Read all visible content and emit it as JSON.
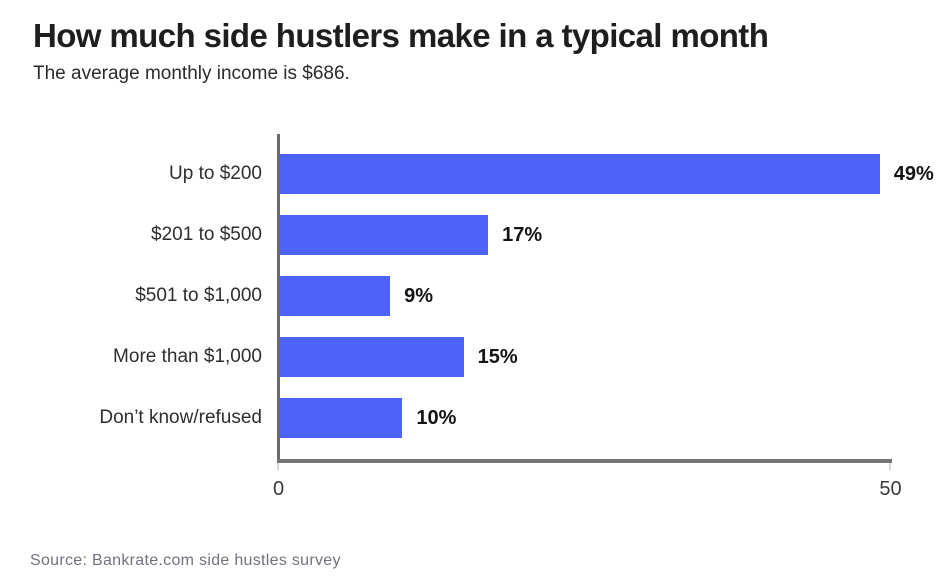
{
  "header": {
    "title": "How much side hustlers make in a typical month",
    "subtitle": "The average monthly income is $686."
  },
  "chart_data": {
    "type": "bar",
    "orientation": "horizontal",
    "title": "How much side hustlers make in a typical month",
    "subtitle": "The average monthly income is $686.",
    "categories": [
      "Up to $200",
      "$201 to $500",
      "$501 to $1,000",
      "More than $1,000",
      "Don’t know/refused"
    ],
    "values": [
      49,
      17,
      9,
      15,
      10
    ],
    "value_labels": [
      "49%",
      "17%",
      "9%",
      "15%",
      "10%"
    ],
    "xlim": [
      0,
      50
    ],
    "x_ticks": [
      0,
      50
    ],
    "x_tick_labels": [
      "0",
      "50"
    ],
    "grid": false,
    "legend": false,
    "bar_color": "#4D63F7",
    "axis_color": "#6b6b6b"
  },
  "footer": {
    "source": "Source: Bankrate.com side hustles survey"
  }
}
